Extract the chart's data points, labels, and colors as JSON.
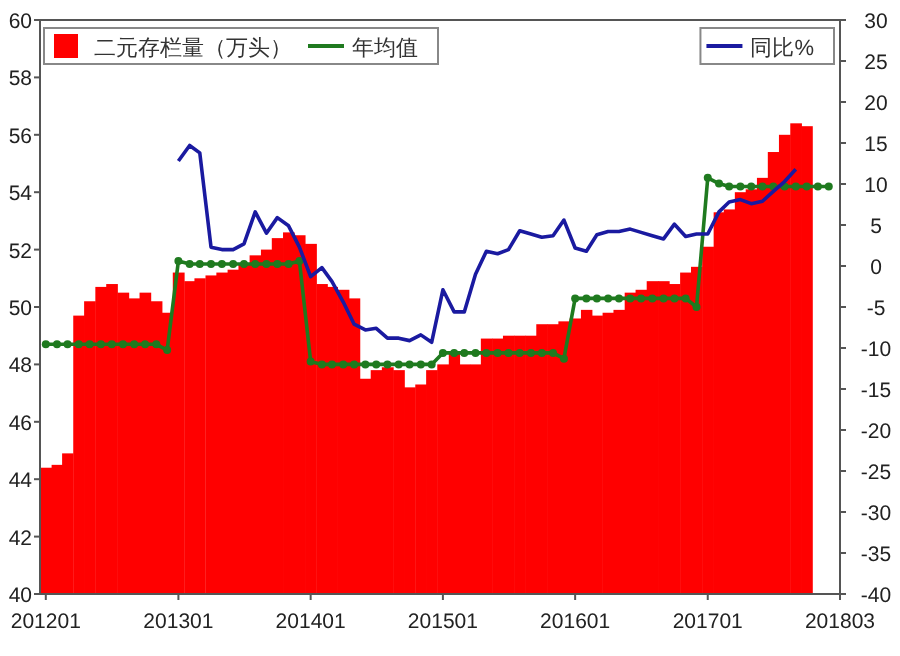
{
  "chart_data": {
    "type": "bar",
    "x": [
      "2012-01",
      "2012-02",
      "2012-03",
      "2012-04",
      "2012-05",
      "2012-06",
      "2012-07",
      "2012-08",
      "2012-09",
      "2012-10",
      "2012-11",
      "2012-12",
      "2013-01",
      "2013-02",
      "2013-03",
      "2013-04",
      "2013-05",
      "2013-06",
      "2013-07",
      "2013-08",
      "2013-09",
      "2013-10",
      "2013-11",
      "2013-12",
      "2014-01",
      "2014-02",
      "2014-03",
      "2014-04",
      "2014-05",
      "2014-06",
      "2014-07",
      "2014-08",
      "2014-09",
      "2014-10",
      "2014-11",
      "2014-12",
      "2015-01",
      "2015-02",
      "2015-03",
      "2015-04",
      "2015-05",
      "2015-06",
      "2015-07",
      "2015-08",
      "2015-09",
      "2015-10",
      "2015-11",
      "2015-12",
      "2016-01",
      "2016-02",
      "2016-03",
      "2016-04",
      "2016-05",
      "2016-06",
      "2016-07",
      "2016-08",
      "2016-09",
      "2016-10",
      "2016-11",
      "2016-12",
      "2017-01",
      "2017-02",
      "2017-03",
      "2017-04",
      "2017-05",
      "2017-06",
      "2017-07",
      "2017-08",
      "2017-09",
      "2017-10",
      "2017-11",
      "2017-12"
    ],
    "series": [
      {
        "name": "二元存栏量（万头）",
        "color": "#ff0000",
        "values": [
          44.4,
          44.5,
          44.9,
          49.7,
          50.2,
          50.7,
          50.8,
          50.5,
          50.3,
          50.5,
          50.2,
          49.8,
          51.2,
          50.9,
          51.0,
          51.1,
          51.2,
          51.3,
          51.5,
          51.8,
          52.0,
          52.4,
          52.6,
          52.5,
          52.2,
          50.8,
          50.7,
          50.6,
          50.3,
          47.5,
          47.8,
          47.9,
          47.8,
          47.2,
          47.3,
          47.8,
          48.0,
          48.4,
          48.0,
          48.0,
          48.9,
          48.9,
          49.0,
          49.0,
          49.0,
          49.4,
          49.4,
          49.5,
          49.6,
          49.9,
          49.7,
          49.8,
          49.9,
          50.5,
          50.6,
          50.9,
          50.9,
          50.8,
          51.2,
          51.4,
          52.1,
          53.3,
          53.4,
          54.0,
          54.1,
          54.5,
          55.4,
          56.0,
          56.4,
          56.3,
          null,
          null
        ]
      },
      {
        "name": "年均值",
        "type": "line",
        "color": "#1f7a1f",
        "marker": "circle",
        "values": [
          48.7,
          48.7,
          48.7,
          48.7,
          48.7,
          48.7,
          48.7,
          48.7,
          48.7,
          48.7,
          48.7,
          48.5,
          51.6,
          51.5,
          51.5,
          51.5,
          51.5,
          51.5,
          51.5,
          51.5,
          51.5,
          51.5,
          51.5,
          51.6,
          48.1,
          48.0,
          48.0,
          48.0,
          48.0,
          48.0,
          48.0,
          48.0,
          48.0,
          48.0,
          48.0,
          48.0,
          48.4,
          48.4,
          48.4,
          48.4,
          48.4,
          48.4,
          48.4,
          48.4,
          48.4,
          48.4,
          48.4,
          48.2,
          50.3,
          50.3,
          50.3,
          50.3,
          50.3,
          50.3,
          50.3,
          50.3,
          50.3,
          50.3,
          50.3,
          50.0,
          54.5,
          54.3,
          54.2,
          54.2,
          54.2,
          54.2,
          54.2,
          54.2,
          54.2,
          54.2,
          54.2,
          54.2
        ]
      },
      {
        "name": "同比%",
        "type": "line",
        "axis": "y2",
        "color": "#1a1aa0",
        "values": [
          null,
          null,
          null,
          null,
          null,
          null,
          null,
          null,
          null,
          null,
          null,
          null,
          12.8,
          14.7,
          13.8,
          2.3,
          2.0,
          2.0,
          2.7,
          6.6,
          4.0,
          5.9,
          4.9,
          2.3,
          -1.3,
          -0.2,
          -1.9,
          -4.4,
          -7.1,
          -7.8,
          -7.6,
          -8.8,
          -8.8,
          -9.1,
          -8.4,
          -9.3,
          -2.9,
          -5.6,
          -5.6,
          -1.0,
          1.8,
          1.5,
          2.0,
          4.3,
          3.9,
          3.5,
          3.7,
          5.6,
          2.2,
          1.8,
          3.8,
          4.2,
          4.2,
          4.5,
          4.1,
          3.7,
          3.3,
          5.1,
          3.6,
          3.9,
          3.9,
          6.6,
          7.8,
          8.1,
          7.6,
          7.9,
          9.1,
          10.3,
          11.8,
          null,
          null,
          null
        ]
      }
    ],
    "xlim": [
      "2011-12-16",
      "2018-01-01"
    ],
    "xticks": [
      {
        "value": "2012-01",
        "label": "201201"
      },
      {
        "value": "2013-01",
        "label": "201301"
      },
      {
        "value": "2014-01",
        "label": "201401"
      },
      {
        "value": "2015-01",
        "label": "201501"
      },
      {
        "value": "2016-01",
        "label": "201601"
      },
      {
        "value": "2017-01",
        "label": "201701"
      },
      {
        "value": "2018-01",
        "label": "201803"
      }
    ],
    "ylim": [
      40,
      60
    ],
    "yticks": [
      40,
      42,
      44,
      46,
      48,
      50,
      52,
      54,
      56,
      58,
      60
    ],
    "y2lim": [
      -40,
      30
    ],
    "y2ticks": [
      -40,
      -35,
      -30,
      -25,
      -20,
      -15,
      -10,
      -5,
      0,
      5,
      10,
      15,
      20,
      25,
      30
    ],
    "legend": "top",
    "grid": false
  }
}
